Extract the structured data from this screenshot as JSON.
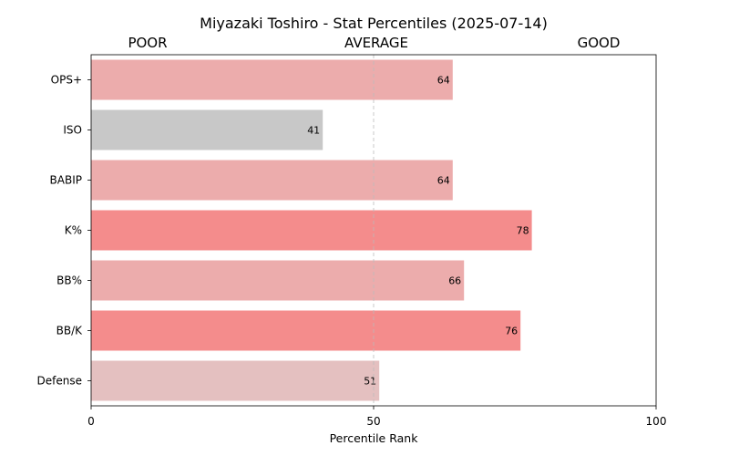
{
  "chart_data": {
    "type": "bar",
    "orientation": "horizontal",
    "title": "Miyazaki Toshiro - Stat Percentiles (2025-07-14)",
    "band_labels": [
      "POOR",
      "AVERAGE",
      "GOOD"
    ],
    "xlabel": "Percentile Rank",
    "ylabel": "",
    "xlim": [
      0,
      100
    ],
    "xticks": [
      0,
      50,
      100
    ],
    "reference_line": 50,
    "categories": [
      "OPS+",
      "ISO",
      "BABIP",
      "K%",
      "BB%",
      "BB/K",
      "Defense"
    ],
    "values": [
      64,
      41,
      64,
      78,
      66,
      76,
      51
    ],
    "bar_colors": [
      "#ecacac",
      "#c8c8c8",
      "#ecacac",
      "#f48c8c",
      "#ecacac",
      "#f48c8c",
      "#e4c0c0"
    ],
    "data_labels": true,
    "legend": "none",
    "grid": false
  }
}
